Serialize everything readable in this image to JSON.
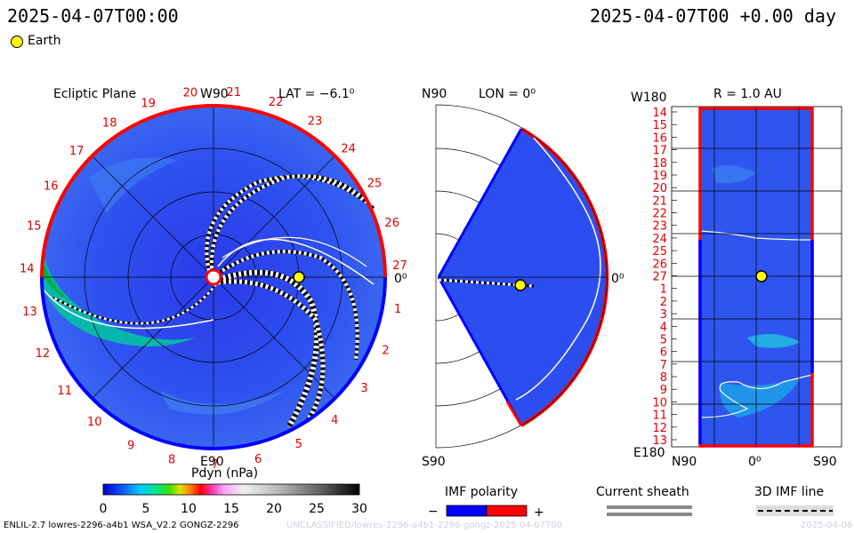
{
  "header": {
    "left_time": "2025-04-07T00:00",
    "right_time": "2025-04-07T00 +0.00 day"
  },
  "legend": {
    "earth_label": "Earth",
    "earth_color": "#ffff00"
  },
  "panel_ecliptic": {
    "title": "Ecliptic Plane",
    "lat_label": "LAT = −6.1⁰",
    "top_label": "W90",
    "bottom_label": "E90",
    "right_label": "0⁰",
    "rim_numbers": [
      "1",
      "2",
      "3",
      "4",
      "5",
      "6",
      "7",
      "8",
      "9",
      "10",
      "11",
      "12",
      "13",
      "14",
      "15",
      "16",
      "17",
      "18",
      "19",
      "20",
      "21",
      "22",
      "23",
      "24",
      "25",
      "26",
      "27"
    ]
  },
  "panel_meridional": {
    "top_left": "N90",
    "title": "LON = 0⁰",
    "right_label": "0⁰",
    "bottom_left": "S90"
  },
  "panel_r": {
    "top_left": "W180",
    "title": "R = 1.0 AU",
    "bottom_left": "E180",
    "x_labels": [
      "N90",
      "0⁰",
      "S90"
    ],
    "y_labels": [
      "14",
      "15",
      "16",
      "17",
      "18",
      "19",
      "20",
      "21",
      "22",
      "23",
      "24",
      "25",
      "26",
      "27",
      "1",
      "2",
      "3",
      "4",
      "5",
      "6",
      "7",
      "8",
      "9",
      "10",
      "11",
      "12",
      "13"
    ]
  },
  "colorbar": {
    "title": "Pdyn (nPa)",
    "ticks": [
      "0",
      "5",
      "10",
      "15",
      "20",
      "25",
      "30"
    ],
    "min": 0,
    "max": 30
  },
  "imf": {
    "title": "IMF polarity",
    "minus": "−",
    "plus": "+",
    "neg_color": "#0000ff",
    "pos_color": "#ff0000"
  },
  "sheath": {
    "title": "Current sheath"
  },
  "imf_line": {
    "title": "3D IMF line"
  },
  "footer": {
    "left": "ENLIL-2.7 lowres-2296-a4b1 WSA_V2.2 GONGZ-2296",
    "center": "UNCLASSIFIED/lowres-2296-a4b1-2296-gongz-2025-04-07T00",
    "right": "2025-04-06"
  },
  "chart_data": {
    "type": "heatmap",
    "variable": "Pdyn (nPa)",
    "range": [
      0,
      30
    ],
    "earth_position": {
      "r_au": 1.0,
      "lat_deg": -6.1,
      "lon_deg": 0
    },
    "day": 0.0
  }
}
